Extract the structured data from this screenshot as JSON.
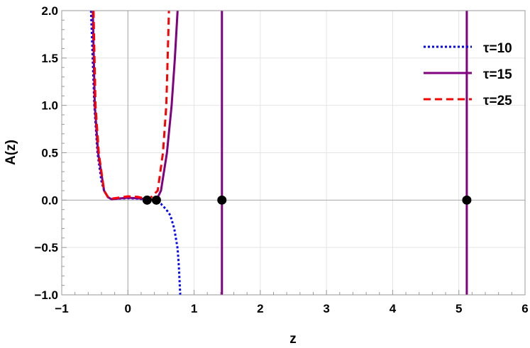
{
  "chart_data": {
    "type": "line",
    "xlabel": "z",
    "ylabel": "A(z)",
    "xlim": [
      -1,
      6
    ],
    "ylim": [
      -1,
      2
    ],
    "x_ticks": [
      "−1",
      "0",
      "1",
      "2",
      "3",
      "4",
      "5",
      "6"
    ],
    "y_ticks": [
      "−1.0",
      "−0.5",
      "0.0",
      "0.5",
      "1.0",
      "1.5",
      "2.0"
    ],
    "grid": true,
    "legend_position": "top-right",
    "series": [
      {
        "name": "τ=10",
        "color": "#0000ff",
        "style": "dotted",
        "segments": [
          [
            [
              -0.557,
              2
            ],
            [
              -0.507,
              1
            ],
            [
              -0.46,
              0.5
            ],
            [
              -0.4,
              0.2
            ],
            [
              -0.36,
              0.1
            ],
            [
              -0.3,
              0.03
            ],
            [
              -0.25,
              0.01
            ],
            [
              -0.15,
              0.015
            ],
            [
              0,
              0.02
            ],
            [
              0.15,
              0.015
            ],
            [
              0.28,
              0.005
            ],
            [
              0.4,
              -0.01
            ],
            [
              0.5,
              -0.04
            ],
            [
              0.58,
              -0.1
            ],
            [
              0.64,
              -0.16
            ],
            [
              0.7,
              -0.3
            ],
            [
              0.75,
              -0.51
            ],
            [
              0.77,
              -0.7
            ],
            [
              0.79,
              -1
            ]
          ]
        ]
      },
      {
        "name": "τ=15",
        "color": "#800080",
        "style": "solid",
        "segments": [
          [
            [
              -0.53,
              2
            ],
            [
              -0.5,
              1
            ],
            [
              -0.45,
              0.5
            ],
            [
              -0.36,
              0.1
            ],
            [
              -0.3,
              0.03
            ],
            [
              -0.25,
              0.01
            ],
            [
              -0.1,
              0.02
            ],
            [
              0,
              0.025
            ],
            [
              0.15,
              0.02
            ],
            [
              0.3,
              0.01
            ],
            [
              0.43,
              0
            ],
            [
              0.5,
              0.1
            ],
            [
              0.59,
              0.5
            ],
            [
              0.66,
              1
            ],
            [
              0.71,
              1.5
            ],
            [
              0.75,
              2
            ]
          ],
          [
            [
              1.42,
              2
            ],
            [
              1.42,
              -1
            ]
          ],
          [
            [
              5.12,
              2
            ],
            [
              5.12,
              -1
            ]
          ]
        ]
      },
      {
        "name": "τ=25",
        "color": "#ff0000",
        "style": "dashed",
        "segments": [
          [
            [
              -0.52,
              2
            ],
            [
              -0.49,
              1
            ],
            [
              -0.44,
              0.5
            ],
            [
              -0.36,
              0.1
            ],
            [
              -0.3,
              0.03
            ],
            [
              -0.25,
              0.015
            ],
            [
              -0.1,
              0.03
            ],
            [
              0,
              0.04
            ],
            [
              0.15,
              0.035
            ],
            [
              0.29,
              0.01
            ],
            [
              0.35,
              0.03
            ],
            [
              0.45,
              0.1
            ],
            [
              0.53,
              0.5
            ],
            [
              0.58,
              1
            ],
            [
              0.6,
              1.5
            ],
            [
              0.62,
              2
            ]
          ]
        ]
      }
    ],
    "points": [
      {
        "x": 0.29,
        "y": 0
      },
      {
        "x": 0.43,
        "y": 0
      },
      {
        "x": 1.42,
        "y": 0
      },
      {
        "x": 5.12,
        "y": 0
      }
    ],
    "point_color": "#000000"
  }
}
